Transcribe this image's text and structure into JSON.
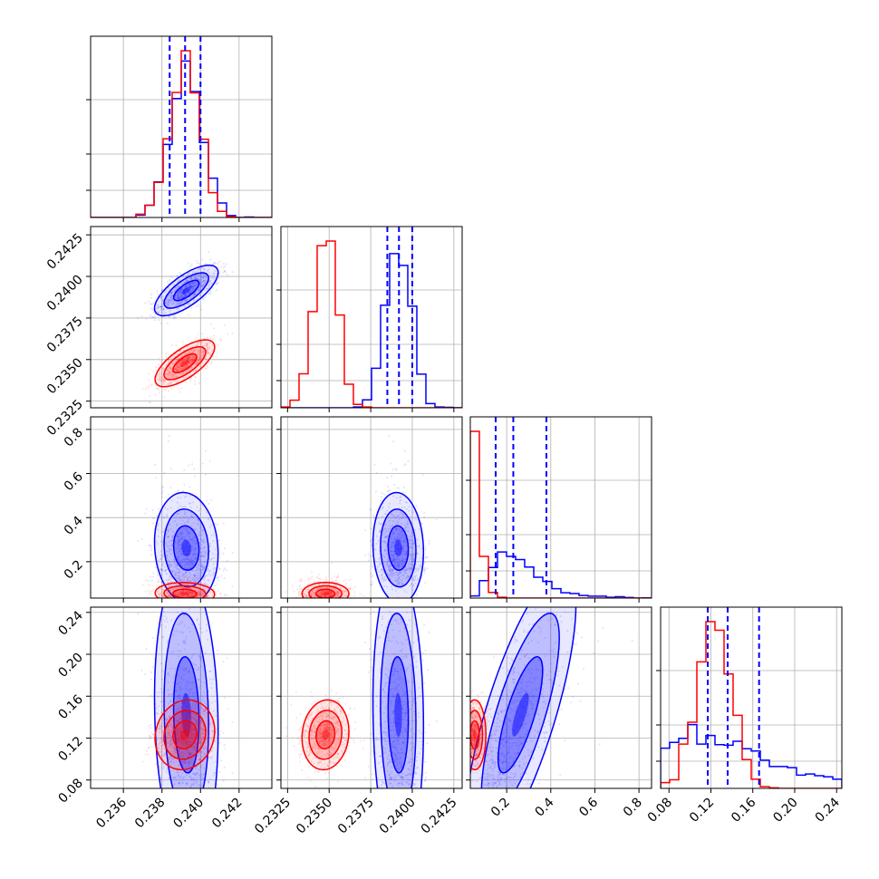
{
  "chart_data": {
    "type": "corner",
    "description_axes": [
      "param_1",
      "param_2",
      "param_3",
      "param_4"
    ],
    "axis_labels": [
      "",
      "",
      "",
      ""
    ],
    "ranges": [
      [
        0.2343,
        0.2437
      ],
      [
        0.2321,
        0.243
      ],
      [
        0.035,
        0.857
      ],
      [
        0.072,
        0.245
      ]
    ],
    "ticks": [
      {
        "values": [
          0.236,
          0.238,
          0.24,
          0.242
        ],
        "labels": [
          "0.236",
          "0.238",
          "0.240",
          "0.242"
        ]
      },
      {
        "values": [
          0.2325,
          0.235,
          0.2375,
          0.24,
          0.2425
        ],
        "labels": [
          "0.2325",
          "0.2350",
          "0.2375",
          "0.2400",
          "0.2425"
        ]
      },
      {
        "values": [
          0.2,
          0.4,
          0.6,
          0.8
        ],
        "labels": [
          "0.2",
          "0.4",
          "0.6",
          "0.8"
        ]
      },
      {
        "values": [
          0.08,
          0.12,
          0.16,
          0.2,
          0.24
        ],
        "labels": [
          "0.08",
          "0.12",
          "0.16",
          "0.20",
          "0.24"
        ]
      }
    ],
    "grid": true,
    "series": [
      {
        "color": "#0000ff",
        "mean": [
          0.2393,
          0.2392,
          0.26,
          0.14
        ],
        "std": [
          0.00085,
          0.00075,
          0.14,
          0.022
        ],
        "skew_right": [
          false,
          false,
          true,
          true
        ],
        "quantiles": [
          [
            0.2384,
            0.2392,
            0.24
          ],
          [
            0.2385,
            0.2392,
            0.24
          ],
          [
            0.15,
            0.23,
            0.38
          ],
          [
            0.117,
            0.136,
            0.166
          ]
        ]
      },
      {
        "color": "#ff0000",
        "mean": [
          0.2392,
          0.2348,
          0.055,
          0.123
        ],
        "std": [
          0.00075,
          0.0007,
          0.025,
          0.016
        ],
        "skew_right": [
          false,
          false,
          true,
          false
        ],
        "quantiles": []
      }
    ],
    "correlations": {
      "blue": {
        "1-0": 0.7,
        "2-0": -0.1,
        "2-1": 0.05,
        "3-0": -0.05,
        "3-1": 0.0,
        "3-2": 0.75
      },
      "red": {
        "1-0": 0.7,
        "2-0": 0.0,
        "2-1": 0.0,
        "3-0": 0.1,
        "3-1": 0.1,
        "3-2": 0.0
      }
    }
  }
}
